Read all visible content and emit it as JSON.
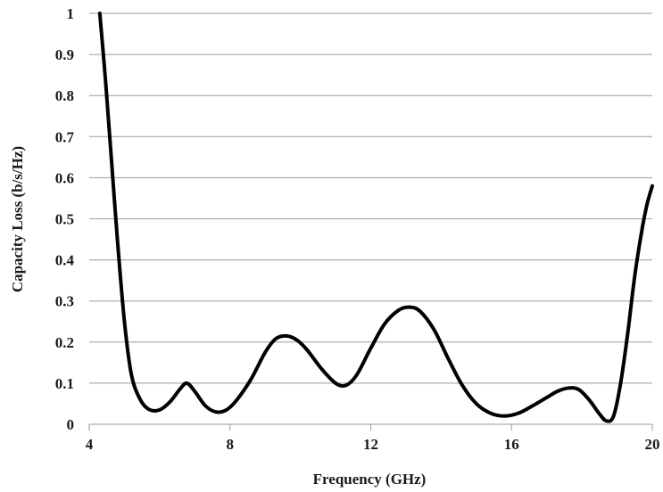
{
  "chart_data": {
    "type": "line",
    "title": "",
    "xlabel": "Frequency (GHz)",
    "ylabel": "Capacity Loss (b/s/Hz)",
    "xlim": [
      4,
      20
    ],
    "ylim": [
      0,
      1
    ],
    "xticks": [
      {
        "value": 4,
        "label": "4"
      },
      {
        "value": 8,
        "label": "8"
      },
      {
        "value": 12,
        "label": "12"
      },
      {
        "value": 16,
        "label": "16"
      },
      {
        "value": 20,
        "label": "20"
      }
    ],
    "yticks": [
      {
        "value": 0,
        "label": "0"
      },
      {
        "value": 0.1,
        "label": "0.1"
      },
      {
        "value": 0.2,
        "label": "0.2"
      },
      {
        "value": 0.3,
        "label": "0.3"
      },
      {
        "value": 0.4,
        "label": "0.4"
      },
      {
        "value": 0.5,
        "label": "0.5"
      },
      {
        "value": 0.6,
        "label": "0.6"
      },
      {
        "value": 0.7,
        "label": "0.7"
      },
      {
        "value": 0.8,
        "label": "0.8"
      },
      {
        "value": 0.9,
        "label": "0.9"
      },
      {
        "value": 1,
        "label": "1"
      }
    ],
    "grid": true,
    "legend": "none",
    "line_color": "#000000",
    "series": [
      {
        "x": [
          4.3,
          4.45,
          4.6,
          4.8,
          5.0,
          5.2,
          5.45,
          5.7,
          6.0,
          6.3,
          6.6,
          6.78,
          7.0,
          7.3,
          7.6,
          7.9,
          8.2,
          8.6,
          9.0,
          9.3,
          9.6,
          9.9,
          10.2,
          10.6,
          11.0,
          11.3,
          11.6,
          12.0,
          12.4,
          12.8,
          13.1,
          13.4,
          13.8,
          14.2,
          14.6,
          15.0,
          15.4,
          15.8,
          16.2,
          16.6,
          17.0,
          17.3,
          17.6,
          17.9,
          18.2,
          18.5,
          18.7,
          18.9,
          19.1,
          19.3,
          19.5,
          19.7,
          19.85,
          20.0
        ],
        "y": [
          1.0,
          0.85,
          0.68,
          0.45,
          0.25,
          0.12,
          0.06,
          0.036,
          0.035,
          0.055,
          0.088,
          0.1,
          0.08,
          0.045,
          0.03,
          0.035,
          0.06,
          0.11,
          0.175,
          0.208,
          0.215,
          0.205,
          0.18,
          0.135,
          0.1,
          0.095,
          0.12,
          0.185,
          0.245,
          0.278,
          0.285,
          0.275,
          0.23,
          0.16,
          0.095,
          0.05,
          0.027,
          0.02,
          0.027,
          0.045,
          0.065,
          0.08,
          0.088,
          0.085,
          0.06,
          0.025,
          0.008,
          0.02,
          0.1,
          0.22,
          0.36,
          0.47,
          0.535,
          0.58
        ]
      }
    ]
  }
}
